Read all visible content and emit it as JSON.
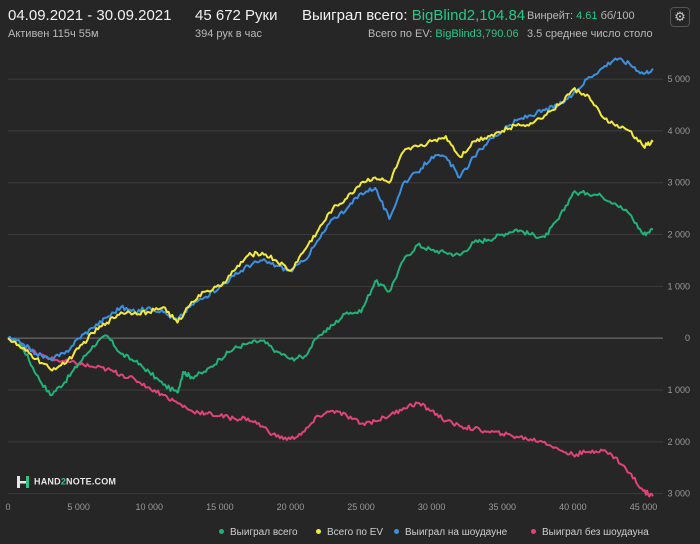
{
  "header": {
    "date_range": "04.09.2021 - 30.09.2021",
    "active": "Активен 115ч 55м",
    "hands": "45 672 Руки",
    "hands_per_hour": "394 рук в час",
    "won_label": "Выиграл всего:",
    "won_value": "BigBlind2,104.84",
    "ev_label": "Всего по EV:",
    "ev_value": "BigBlind3,790.06",
    "winrate_label": "Винрейт:",
    "winrate_value": "4.61",
    "winrate_unit": "бб/100",
    "tables": "3.5 среднее число столо",
    "settings_icon": "gear-icon"
  },
  "logo": {
    "part1": "HAND",
    "part2": "2",
    "part3": "NOTE.COM"
  },
  "chart_data": {
    "type": "line",
    "xlim": [
      0,
      45672
    ],
    "ylim": [
      -3200,
      5600
    ],
    "x_ticks": [
      0,
      5000,
      10000,
      15000,
      20000,
      25000,
      30000,
      35000,
      40000,
      45000
    ],
    "x_tick_labels": [
      "0",
      "5 000",
      "10 000",
      "15 000",
      "20 000",
      "25 000",
      "30 000",
      "35 000",
      "40 000",
      "45 000"
    ],
    "y_ticks": [
      5000,
      4000,
      3000,
      2000,
      1000,
      0,
      -1000,
      -2000,
      -3000
    ],
    "y_tick_labels": [
      "5 000",
      "4 000",
      "3 000",
      "2 000",
      "1 000",
      "0",
      "1 000",
      "2 000",
      "3 000"
    ],
    "grid": true,
    "legend_position": "bottom-right",
    "series": [
      {
        "name": "Выиграл всего",
        "color": "#21b27a",
        "points": [
          [
            0,
            0
          ],
          [
            1000,
            -150
          ],
          [
            2000,
            -700
          ],
          [
            3000,
            -1100
          ],
          [
            4000,
            -850
          ],
          [
            5000,
            -500
          ],
          [
            6000,
            -150
          ],
          [
            7000,
            50
          ],
          [
            8000,
            -300
          ],
          [
            9000,
            -450
          ],
          [
            10000,
            -650
          ],
          [
            11000,
            -900
          ],
          [
            12000,
            -1050
          ],
          [
            12400,
            -650
          ],
          [
            13000,
            -750
          ],
          [
            14000,
            -650
          ],
          [
            15000,
            -400
          ],
          [
            16000,
            -200
          ],
          [
            17000,
            -100
          ],
          [
            18000,
            -50
          ],
          [
            19000,
            -250
          ],
          [
            20000,
            -400
          ],
          [
            21000,
            -350
          ],
          [
            22000,
            50
          ],
          [
            23000,
            250
          ],
          [
            24000,
            500
          ],
          [
            25000,
            500
          ],
          [
            26000,
            1100
          ],
          [
            27000,
            900
          ],
          [
            28000,
            1500
          ],
          [
            29000,
            1800
          ],
          [
            30000,
            1700
          ],
          [
            31000,
            1650
          ],
          [
            32000,
            1600
          ],
          [
            33000,
            1850
          ],
          [
            34000,
            1900
          ],
          [
            35000,
            2000
          ],
          [
            36000,
            2100
          ],
          [
            37000,
            2000
          ],
          [
            38000,
            1950
          ],
          [
            39000,
            2300
          ],
          [
            40000,
            2800
          ],
          [
            41000,
            2800
          ],
          [
            42000,
            2750
          ],
          [
            43000,
            2600
          ],
          [
            44000,
            2400
          ],
          [
            45000,
            2000
          ],
          [
            45672,
            2105
          ]
        ]
      },
      {
        "name": "Всего по EV",
        "color": "#f2ea3c",
        "points": [
          [
            0,
            0
          ],
          [
            1000,
            -200
          ],
          [
            2000,
            -400
          ],
          [
            3000,
            -600
          ],
          [
            4000,
            -500
          ],
          [
            5000,
            -200
          ],
          [
            6000,
            100
          ],
          [
            7000,
            300
          ],
          [
            8000,
            500
          ],
          [
            9000,
            500
          ],
          [
            10000,
            500
          ],
          [
            11000,
            600
          ],
          [
            12000,
            300
          ],
          [
            13000,
            700
          ],
          [
            14000,
            900
          ],
          [
            15000,
            1000
          ],
          [
            16000,
            1300
          ],
          [
            17000,
            1600
          ],
          [
            18000,
            1650
          ],
          [
            19000,
            1500
          ],
          [
            20000,
            1300
          ],
          [
            21000,
            1700
          ],
          [
            22000,
            2100
          ],
          [
            23000,
            2500
          ],
          [
            24000,
            2700
          ],
          [
            25000,
            3000
          ],
          [
            26000,
            3100
          ],
          [
            27000,
            3000
          ],
          [
            28000,
            3600
          ],
          [
            29000,
            3700
          ],
          [
            30000,
            3800
          ],
          [
            31000,
            3900
          ],
          [
            32000,
            3500
          ],
          [
            33000,
            3800
          ],
          [
            34000,
            3900
          ],
          [
            35000,
            4000
          ],
          [
            36000,
            4100
          ],
          [
            37000,
            4150
          ],
          [
            38000,
            4300
          ],
          [
            39000,
            4500
          ],
          [
            40000,
            4800
          ],
          [
            41000,
            4700
          ],
          [
            42000,
            4300
          ],
          [
            43000,
            4100
          ],
          [
            44000,
            4000
          ],
          [
            45000,
            3700
          ],
          [
            45672,
            3790
          ]
        ]
      },
      {
        "name": "Выиграл на шоудауне",
        "color": "#3d8fe0",
        "points": [
          [
            0,
            0
          ],
          [
            1000,
            -100
          ],
          [
            2000,
            -300
          ],
          [
            3000,
            -400
          ],
          [
            4000,
            -300
          ],
          [
            5000,
            0
          ],
          [
            6000,
            200
          ],
          [
            7000,
            400
          ],
          [
            8000,
            600
          ],
          [
            9000,
            500
          ],
          [
            10000,
            600
          ],
          [
            11000,
            500
          ],
          [
            12000,
            350
          ],
          [
            13000,
            650
          ],
          [
            14000,
            800
          ],
          [
            15000,
            1000
          ],
          [
            16000,
            1200
          ],
          [
            17000,
            1400
          ],
          [
            18000,
            1500
          ],
          [
            19000,
            1400
          ],
          [
            20000,
            1300
          ],
          [
            21000,
            1500
          ],
          [
            22000,
            1900
          ],
          [
            23000,
            2300
          ],
          [
            24000,
            2500
          ],
          [
            25000,
            2800
          ],
          [
            26000,
            2900
          ],
          [
            27000,
            2300
          ],
          [
            28000,
            3000
          ],
          [
            29000,
            3200
          ],
          [
            30000,
            3500
          ],
          [
            31000,
            3500
          ],
          [
            32000,
            3100
          ],
          [
            33000,
            3500
          ],
          [
            34000,
            3800
          ],
          [
            35000,
            4000
          ],
          [
            36000,
            4200
          ],
          [
            37000,
            4300
          ],
          [
            38000,
            4400
          ],
          [
            39000,
            4500
          ],
          [
            40000,
            4700
          ],
          [
            41000,
            5000
          ],
          [
            42000,
            5200
          ],
          [
            43000,
            5400
          ],
          [
            44000,
            5300
          ],
          [
            45000,
            5100
          ],
          [
            45672,
            5200
          ]
        ]
      },
      {
        "name": "Выиграл без шоудауна",
        "color": "#e0437a",
        "points": [
          [
            0,
            0
          ],
          [
            1000,
            -150
          ],
          [
            2000,
            -300
          ],
          [
            3000,
            -400
          ],
          [
            4000,
            -450
          ],
          [
            5000,
            -500
          ],
          [
            6000,
            -550
          ],
          [
            7000,
            -600
          ],
          [
            8000,
            -700
          ],
          [
            9000,
            -800
          ],
          [
            10000,
            -950
          ],
          [
            11000,
            -1100
          ],
          [
            12000,
            -1250
          ],
          [
            13000,
            -1400
          ],
          [
            14000,
            -1450
          ],
          [
            15000,
            -1500
          ],
          [
            16000,
            -1550
          ],
          [
            17000,
            -1550
          ],
          [
            18000,
            -1700
          ],
          [
            19000,
            -1900
          ],
          [
            20000,
            -1950
          ],
          [
            21000,
            -1800
          ],
          [
            22000,
            -1500
          ],
          [
            23000,
            -1400
          ],
          [
            24000,
            -1500
          ],
          [
            25000,
            -1650
          ],
          [
            26000,
            -1600
          ],
          [
            27000,
            -1500
          ],
          [
            28000,
            -1350
          ],
          [
            29000,
            -1250
          ],
          [
            30000,
            -1400
          ],
          [
            31000,
            -1600
          ],
          [
            32000,
            -1700
          ],
          [
            33000,
            -1750
          ],
          [
            34000,
            -1800
          ],
          [
            35000,
            -1850
          ],
          [
            36000,
            -1900
          ],
          [
            37000,
            -1950
          ],
          [
            38000,
            -2000
          ],
          [
            39000,
            -2150
          ],
          [
            40000,
            -2250
          ],
          [
            41000,
            -2200
          ],
          [
            42000,
            -2150
          ],
          [
            43000,
            -2300
          ],
          [
            44000,
            -2600
          ],
          [
            45000,
            -2950
          ],
          [
            45672,
            -3050
          ]
        ]
      }
    ]
  }
}
